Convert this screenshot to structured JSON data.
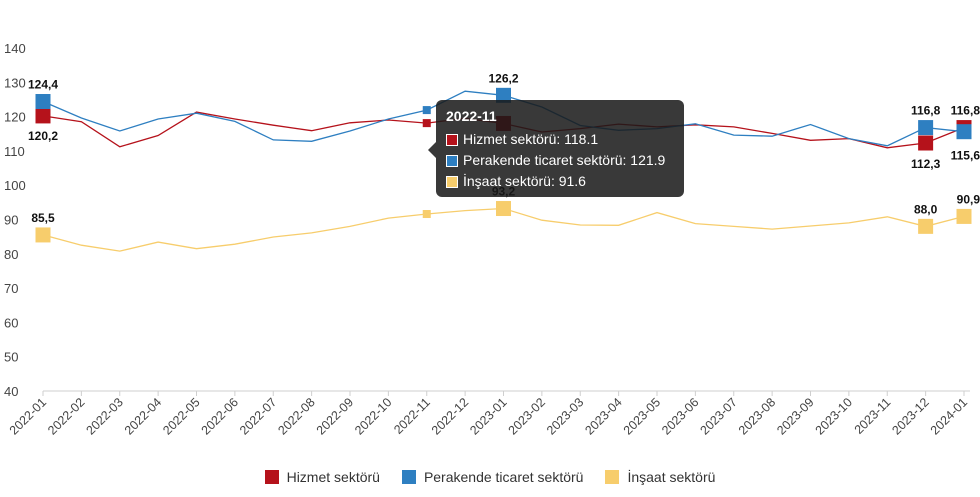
{
  "chart_data": {
    "type": "line",
    "title": "",
    "xlabel": "",
    "ylabel": "",
    "ylim": [
      40,
      140
    ],
    "yticks": [
      40,
      50,
      60,
      70,
      80,
      90,
      100,
      110,
      120,
      130,
      140
    ],
    "grid": false,
    "legend_position": "bottom",
    "categories": [
      "2022-01",
      "2022-02",
      "2022-03",
      "2022-04",
      "2022-05",
      "2022-06",
      "2022-07",
      "2022-08",
      "2022-09",
      "2022-10",
      "2022-11",
      "2022-12",
      "2023-01",
      "2023-02",
      "2023-03",
      "2023-04",
      "2023-05",
      "2023-06",
      "2023-07",
      "2023-08",
      "2023-09",
      "2023-10",
      "2023-11",
      "2023-12",
      "2024-01"
    ],
    "series": [
      {
        "name": "Hizmet sektörü",
        "color": "#b5121b",
        "values": [
          120.2,
          118.5,
          111.2,
          114.5,
          121.3,
          119.3,
          117.5,
          115.9,
          118.2,
          119.0,
          118.1,
          119.5,
          118.0,
          115.5,
          116.5,
          117.8,
          117.0,
          117.6,
          117.0,
          115.1,
          113.1,
          113.6,
          110.9,
          112.3,
          116.8
        ],
        "labels": {
          "0": "120,2",
          "23": "112,3",
          "24": "116,8"
        }
      },
      {
        "name": "Perakende ticaret sektörü",
        "color": "#2e7fc1",
        "values": [
          124.4,
          119.6,
          115.8,
          119.3,
          121.0,
          118.6,
          113.2,
          112.8,
          115.8,
          119.3,
          121.9,
          127.4,
          126.2,
          122.8,
          117.4,
          116.0,
          116.5,
          117.9,
          114.6,
          114.3,
          117.7,
          113.6,
          111.5,
          116.8,
          115.6
        ],
        "labels": {
          "0": "124,4",
          "12": "126,2",
          "23": "116,8",
          "24": "115,6"
        }
      },
      {
        "name": "İnşaat sektörü",
        "color": "#f7cd6c",
        "values": [
          85.5,
          82.5,
          80.8,
          83.4,
          81.5,
          82.8,
          84.9,
          86.1,
          88.0,
          90.4,
          91.6,
          92.6,
          93.2,
          89.8,
          88.4,
          88.3,
          92.0,
          88.8,
          88.0,
          87.2,
          88.1,
          89.0,
          90.8,
          88.0,
          90.9
        ],
        "labels": {
          "0": "85,5",
          "12": "93,2",
          "23": "88,0",
          "24": "90,9"
        }
      }
    ],
    "highlight_index": 12
  },
  "tooltip": {
    "title": "2022-11",
    "rows": [
      {
        "text": "Hizmet sektörü: 118.1",
        "color": "#b5121b"
      },
      {
        "text": "Perakende ticaret sektörü: 121.9",
        "color": "#2e7fc1"
      },
      {
        "text": "İnşaat sektörü: 91.6",
        "color": "#f7cd6c"
      }
    ]
  }
}
